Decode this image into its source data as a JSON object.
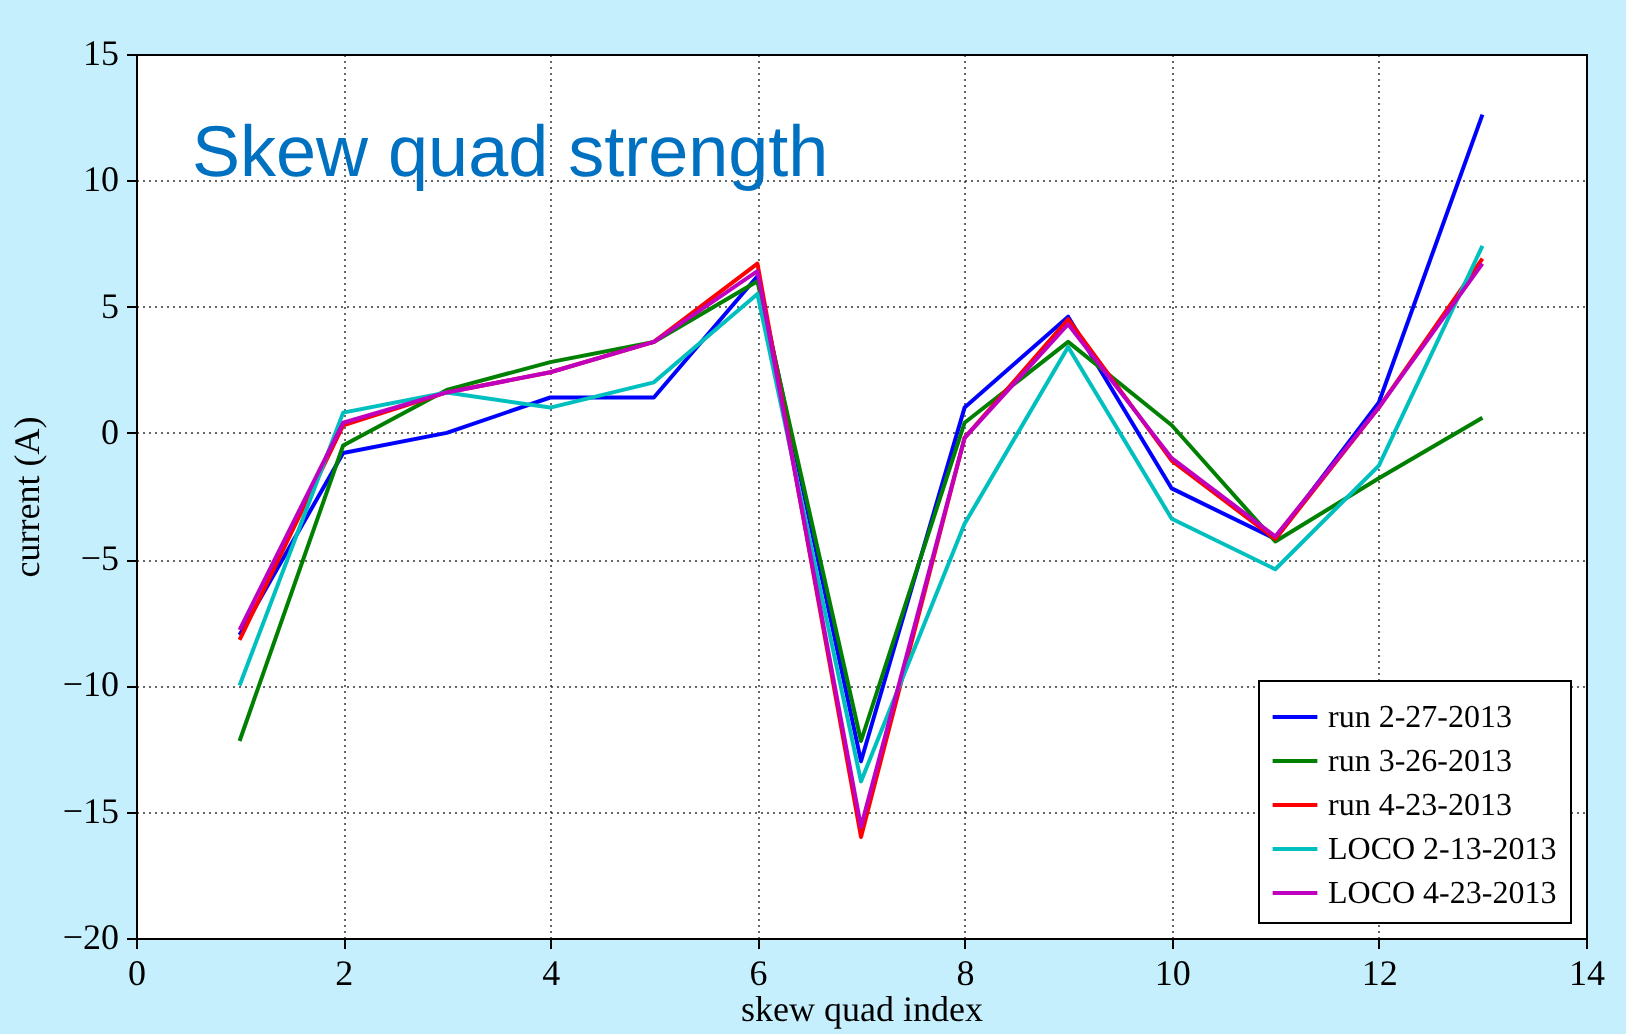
{
  "chart_data": {
    "type": "line",
    "title": "Skew quad strength",
    "xlabel": "skew quad index",
    "ylabel": "current (A)",
    "x": [
      1,
      2,
      3,
      4,
      5,
      6,
      7,
      8,
      9,
      10,
      11,
      12,
      13
    ],
    "xlim": [
      0,
      14
    ],
    "xticks": [
      0,
      2,
      4,
      6,
      8,
      10,
      12,
      14
    ],
    "ylim": [
      -20,
      15
    ],
    "yticks": [
      -20,
      -15,
      -10,
      -5,
      0,
      5,
      10,
      15
    ],
    "grid": true,
    "legend": "bottom right",
    "line_style": "solid",
    "series": [
      {
        "name": "run 2-27-2013",
        "color": "#0000ff",
        "values": [
          -8.0,
          -0.8,
          0,
          1.4,
          1.4,
          6.2,
          -13.0,
          1.0,
          4.6,
          -2.2,
          -4.2,
          1.2,
          12.6
        ]
      },
      {
        "name": "run 3-26-2013",
        "color": "#008000",
        "values": [
          -12.2,
          -0.5,
          1.7,
          2.8,
          3.6,
          6.0,
          -12.2,
          0.4,
          3.6,
          0.3,
          -4.3,
          -1.8,
          0.6
        ]
      },
      {
        "name": "run 4-23-2013",
        "color": "#ff0000",
        "values": [
          -8.2,
          0.3,
          1.6,
          2.4,
          3.6,
          6.7,
          -16.0,
          -0.2,
          4.5,
          -1.1,
          -4.2,
          1.0,
          6.9
        ]
      },
      {
        "name": "LOCO 2-13-2013",
        "color": "#00bfbf",
        "values": [
          -10.0,
          0.8,
          1.6,
          1.0,
          2.0,
          5.5,
          -13.8,
          -3.6,
          3.4,
          -3.4,
          -5.4,
          -1.3,
          7.4
        ]
      },
      {
        "name": "LOCO 4-23-2013",
        "color": "#bf00bf",
        "values": [
          -7.8,
          0.4,
          1.6,
          2.4,
          3.6,
          6.4,
          -15.6,
          -0.2,
          4.3,
          -1.0,
          -4.1,
          1.0,
          6.7
        ]
      }
    ]
  }
}
